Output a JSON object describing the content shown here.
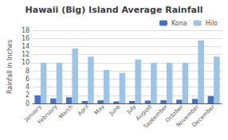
{
  "chart_data": {
    "type": "bar",
    "title": "Hawaii (Big) Island Average Rainfall",
    "ylabel": "Rainfall in Inches",
    "categories": [
      "January",
      "February",
      "March",
      "April",
      "May",
      "June",
      "July",
      "August",
      "September",
      "October",
      "November",
      "December"
    ],
    "series": [
      {
        "name": "Kona",
        "color": "#4472c4",
        "values": [
          2.0,
          1.2,
          1.5,
          0.6,
          0.75,
          0.5,
          0.6,
          0.7,
          0.8,
          0.9,
          1.1,
          1.8
        ]
      },
      {
        "name": "Hilo",
        "color": "#9dc3e6",
        "values": [
          10.0,
          10.0,
          13.5,
          11.5,
          8.2,
          7.5,
          10.8,
          10.0,
          10.0,
          10.0,
          15.5,
          11.5
        ]
      }
    ],
    "ylim": [
      0,
      18
    ],
    "yticks": [
      0,
      2,
      4,
      6,
      8,
      10,
      12,
      14,
      16,
      18
    ],
    "grid": true,
    "legend": "upper right"
  }
}
